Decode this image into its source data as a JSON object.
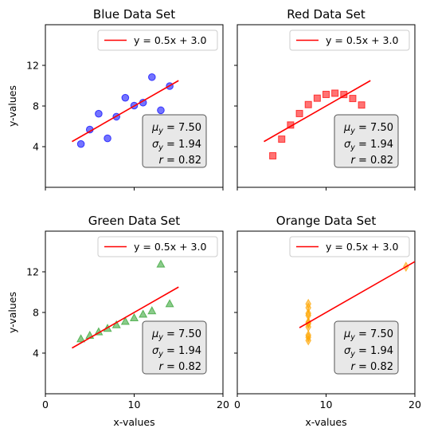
{
  "chart_data": [
    {
      "type": "scatter",
      "title": "Blue Data Set",
      "xlabel": "",
      "ylabel": "y-values",
      "xlim": [
        0,
        20
      ],
      "ylim": [
        0,
        16
      ],
      "xticks": [],
      "yticks": [
        4,
        8,
        12
      ],
      "color": "#0000ff",
      "marker": "circle",
      "x": [
        10,
        8,
        13,
        9,
        11,
        14,
        6,
        4,
        12,
        7,
        5
      ],
      "y": [
        8.04,
        6.95,
        7.58,
        8.81,
        8.33,
        9.96,
        7.24,
        4.26,
        10.84,
        4.82,
        5.68
      ],
      "fit": {
        "slope": 0.5,
        "intercept": 3.0,
        "x_range": [
          3,
          15
        ],
        "label": "y = 0.5x + 3.0",
        "color": "#ff0000"
      },
      "legend_position": "upper right",
      "stats": {
        "mean_label": "μ",
        "mean_sub": "y",
        "mean_value": "= 7.50",
        "std_label": "σ",
        "std_sub": "y",
        "std_value": "= 1.94",
        "r_label": "r",
        "r_value": "= 0.82"
      }
    },
    {
      "type": "scatter",
      "title": "Red Data Set",
      "xlabel": "",
      "ylabel": "",
      "xlim": [
        0,
        20
      ],
      "ylim": [
        0,
        16
      ],
      "xticks": [],
      "yticks": [],
      "color": "#ff0000",
      "marker": "square",
      "x": [
        10,
        8,
        13,
        9,
        11,
        14,
        6,
        4,
        12,
        7,
        5
      ],
      "y": [
        9.14,
        8.14,
        8.74,
        8.77,
        9.26,
        8.1,
        6.13,
        3.1,
        9.13,
        7.26,
        4.74
      ],
      "fit": {
        "slope": 0.5,
        "intercept": 3.0,
        "x_range": [
          3,
          15
        ],
        "label": "y = 0.5x + 3.0",
        "color": "#ff0000"
      },
      "legend_position": "upper right",
      "stats": {
        "mean_label": "μ",
        "mean_sub": "y",
        "mean_value": "= 7.50",
        "std_label": "σ",
        "std_sub": "y",
        "std_value": "= 1.94",
        "r_label": "r",
        "r_value": "= 0.82"
      }
    },
    {
      "type": "scatter",
      "title": "Green Data Set",
      "xlabel": "x-values",
      "ylabel": "y-values",
      "xlim": [
        0,
        20
      ],
      "ylim": [
        0,
        16
      ],
      "xticks": [
        0,
        10,
        20
      ],
      "yticks": [
        4,
        8,
        12
      ],
      "color": "#2ca02c",
      "marker": "triangle",
      "x": [
        10,
        8,
        13,
        9,
        11,
        14,
        6,
        4,
        12,
        7,
        5
      ],
      "y": [
        7.46,
        6.77,
        12.74,
        7.11,
        7.81,
        8.84,
        6.08,
        5.39,
        8.15,
        6.42,
        5.73
      ],
      "fit": {
        "slope": 0.5,
        "intercept": 3.0,
        "x_range": [
          3,
          15
        ],
        "label": "y = 0.5x + 3.0",
        "color": "#ff0000"
      },
      "legend_position": "upper right",
      "stats": {
        "mean_label": "μ",
        "mean_sub": "y",
        "mean_value": "= 7.50",
        "std_label": "σ",
        "std_sub": "y",
        "std_value": "= 1.94",
        "r_label": "r",
        "r_value": "= 0.82"
      }
    },
    {
      "type": "scatter",
      "title": "Orange Data Set",
      "xlabel": "x-values",
      "ylabel": "",
      "xlim": [
        0,
        20
      ],
      "ylim": [
        0,
        16
      ],
      "xticks": [
        0,
        10,
        20
      ],
      "yticks": [],
      "color": "#ffa500",
      "marker": "diamond",
      "x": [
        8,
        8,
        8,
        8,
        8,
        8,
        8,
        19,
        8,
        8,
        8
      ],
      "y": [
        6.58,
        5.76,
        7.71,
        8.84,
        8.47,
        7.04,
        5.25,
        12.5,
        5.56,
        7.91,
        6.89
      ],
      "fit": {
        "slope": 0.5,
        "intercept": 3.0,
        "x_range": [
          7,
          20
        ],
        "label": "y = 0.5x + 3.0",
        "color": "#ff0000"
      },
      "legend_position": "upper right",
      "stats": {
        "mean_label": "μ",
        "mean_sub": "y",
        "mean_value": "= 7.50",
        "std_label": "σ",
        "std_sub": "y",
        "std_value": "= 1.94",
        "r_label": "r",
        "r_value": "= 0.82"
      }
    }
  ]
}
